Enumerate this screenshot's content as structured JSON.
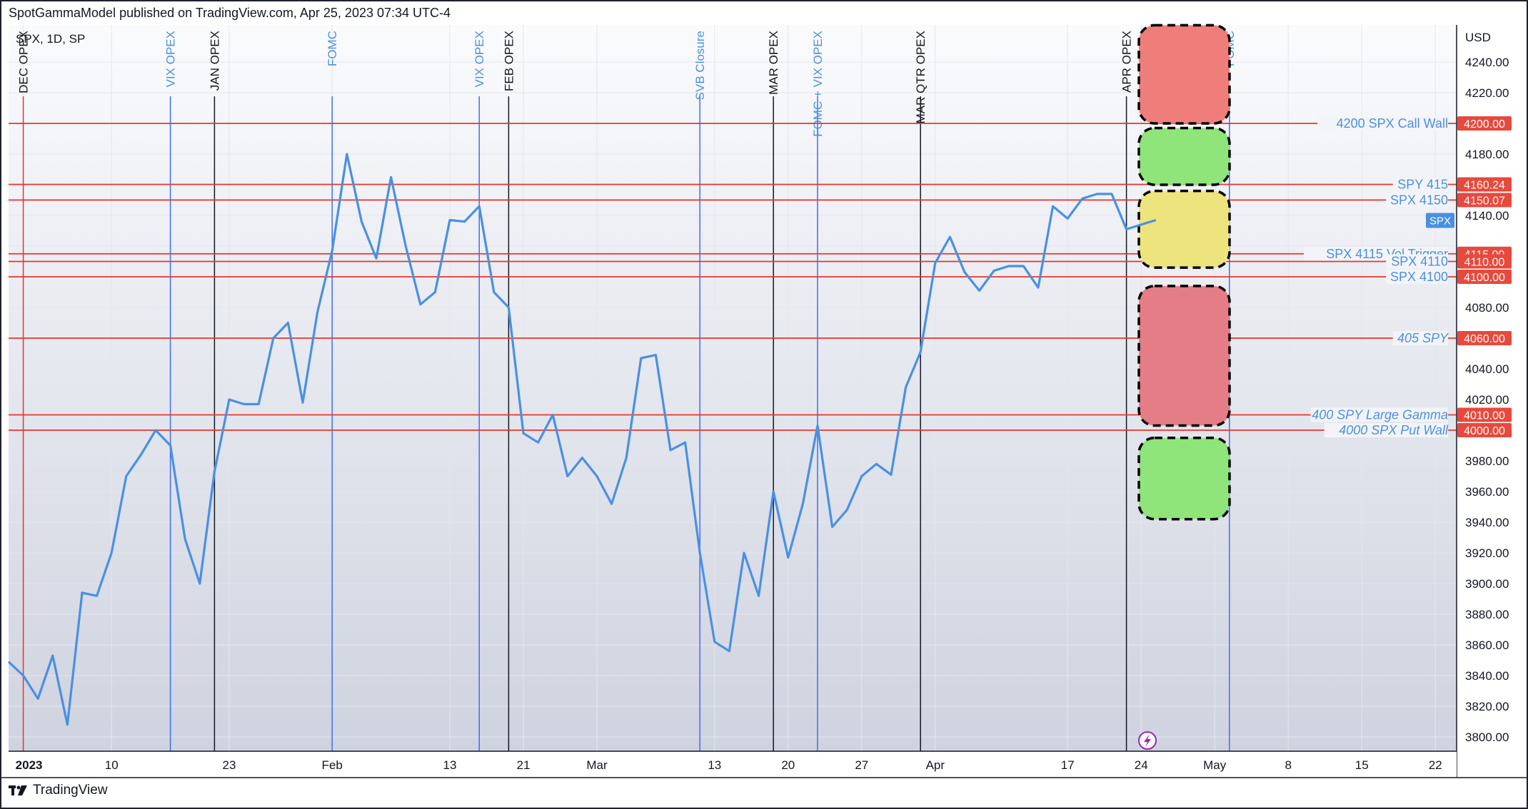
{
  "header": {
    "text": "SpotGammaModel published on TradingView.com, Apr 25, 2023 07:34 UTC-4"
  },
  "footer": {
    "brand": "TradingView"
  },
  "chart_data": {
    "type": "line",
    "symbol_label": "SPX, 1D, SP",
    "currency": "USD",
    "last_label": "SPX",
    "ylim": [
      3790,
      4270
    ],
    "y_ticks": [
      3800,
      3820,
      3840,
      3860,
      3880,
      3900,
      3920,
      3940,
      3960,
      3980,
      4000,
      4020,
      4040,
      4060,
      4080,
      4100,
      4120,
      4140,
      4160,
      4180,
      4200,
      4220,
      4240
    ],
    "x_ticks": [
      {
        "label": "2023",
        "i": 1,
        "bold": true
      },
      {
        "label": "10",
        "i": 7
      },
      {
        "label": "23",
        "i": 15
      },
      {
        "label": "Feb",
        "i": 22
      },
      {
        "label": "13",
        "i": 30
      },
      {
        "label": "21",
        "i": 35
      },
      {
        "label": "Mar",
        "i": 40
      },
      {
        "label": "13",
        "i": 48
      },
      {
        "label": "20",
        "i": 53
      },
      {
        "label": "27",
        "i": 58
      },
      {
        "label": "Apr",
        "i": 63
      },
      {
        "label": "17",
        "i": 72
      },
      {
        "label": "24",
        "i": 77
      },
      {
        "label": "May",
        "i": 82
      },
      {
        "label": "8",
        "i": 87
      },
      {
        "label": "15",
        "i": 92
      },
      {
        "label": "22",
        "i": 97
      }
    ],
    "series": [
      {
        "color": "#4a90e2",
        "values": [
          3849,
          3840,
          3825,
          3853,
          3808,
          3894,
          3892,
          3920,
          3970,
          3984,
          4000,
          3990,
          3929,
          3900,
          3973,
          4020,
          4017,
          4017,
          4060,
          4070,
          4018,
          4077,
          4117,
          4180,
          4136,
          4112,
          4165,
          4120,
          4082,
          4090,
          4137,
          4136,
          4146,
          4090,
          4080,
          3998,
          3992,
          4010,
          3970,
          3982,
          3970,
          3952,
          3982,
          4047,
          4049,
          3987,
          3992,
          3920,
          3862,
          3856,
          3920,
          3892,
          3960,
          3917,
          3952,
          4003,
          3937,
          3948,
          3970,
          3978,
          3971,
          4028,
          4051,
          4109,
          4126,
          4103,
          4091,
          4104,
          4107,
          4107,
          4093,
          4146,
          4138,
          4151,
          4154,
          4154,
          4131,
          4134,
          4137
        ]
      }
    ],
    "levels": [
      {
        "value": 4200,
        "label": "4200 SPX Call Wall",
        "tag": "4200.00",
        "italic": false
      },
      {
        "value": 4160.24,
        "label": "SPY 415",
        "tag": "4160.24",
        "italic": false
      },
      {
        "value": 4150.07,
        "label": "SPX 4150",
        "tag": "4150.07",
        "italic": false
      },
      {
        "value": 4115,
        "label": "SPX 4115 Vol Trigger",
        "tag": "4115.00",
        "italic": false
      },
      {
        "value": 4110,
        "label": "SPX 4110",
        "tag": "4110.00",
        "italic": false
      },
      {
        "value": 4100,
        "label": "SPX 4100",
        "tag": "4100.00",
        "italic": false
      },
      {
        "value": 4060,
        "label": "405 SPY",
        "tag": "4060.00",
        "italic": true
      },
      {
        "value": 4010,
        "label": "400 SPY Large Gamma",
        "tag": "4010.00",
        "italic": true
      },
      {
        "value": 4000,
        "label": "4000 SPX Put Wall",
        "tag": "4000.00",
        "italic": true
      }
    ],
    "events": [
      {
        "i": 1,
        "label": "DEC OPEX",
        "color": "#e8352b",
        "text_color": "#131722"
      },
      {
        "i": 11,
        "label": "VIX OPEX",
        "color": "#3d6ef5",
        "text_color": "#4a90e2"
      },
      {
        "i": 14,
        "label": "JAN OPEX",
        "color": "#131722",
        "text_color": "#131722"
      },
      {
        "i": 22,
        "label": "FOMC",
        "color": "#3d6ef5",
        "text_color": "#4a90e2"
      },
      {
        "i": 32,
        "label": "VIX OPEX",
        "color": "#3d6ef5",
        "text_color": "#4a90e2"
      },
      {
        "i": 34,
        "label": "FEB OPEX",
        "color": "#131722",
        "text_color": "#131722"
      },
      {
        "i": 47,
        "label": "SVB Closure",
        "color": "#3d6ef5",
        "text_color": "#4a90e2"
      },
      {
        "i": 52,
        "label": "MAR OPEX",
        "color": "#131722",
        "text_color": "#131722"
      },
      {
        "i": 55,
        "label": "FOMC + VIX OPEX",
        "color": "#3d6ef5",
        "text_color": "#4a90e2"
      },
      {
        "i": 62,
        "label": "MAR QTR OPEX",
        "color": "#131722",
        "text_color": "#131722"
      },
      {
        "i": 76,
        "label": "APR OPEX",
        "color": "#131722",
        "text_color": "#131722"
      },
      {
        "i": 83,
        "label": "FOMC",
        "color": "#3d6ef5",
        "text_color": "#4a90e2"
      }
    ],
    "zones": [
      {
        "from": 4200,
        "to": 4264,
        "color": "#ef7e7a"
      },
      {
        "from": 4160,
        "to": 4197,
        "color": "#8fe47a"
      },
      {
        "from": 4106,
        "to": 4156,
        "color": "#ede47e"
      },
      {
        "from": 4003,
        "to": 4094,
        "color": "#e47d85"
      },
      {
        "from": 3942,
        "to": 3995,
        "color": "#8fe47a"
      }
    ]
  }
}
